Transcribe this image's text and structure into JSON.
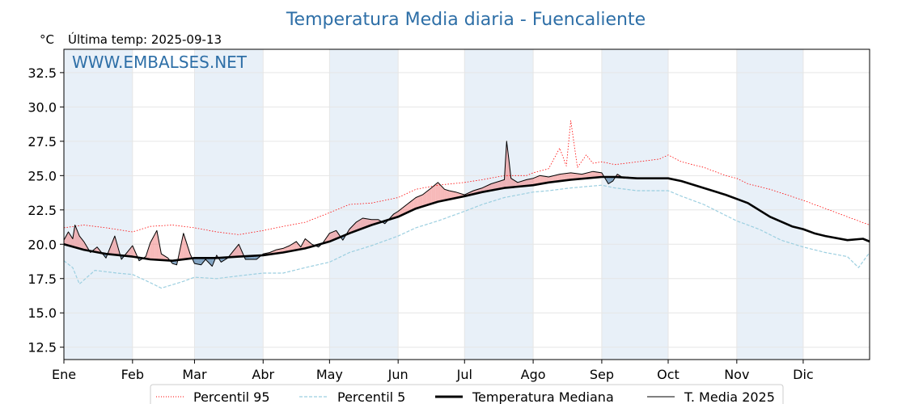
{
  "chart_data": {
    "type": "line",
    "title": "Temperatura Media diaria - Fuencaliente",
    "unit_label": "°C",
    "last_temp_label": "Última temp: 2025-09-13",
    "watermark": "WWW.EMBALSES.NET",
    "xlim": [
      1,
      365
    ],
    "ylim": [
      11.6,
      34.2
    ],
    "y_ticks": [
      "12.5",
      "15.0",
      "17.5",
      "20.0",
      "22.5",
      "25.0",
      "27.5",
      "30.0",
      "32.5"
    ],
    "months": [
      {
        "label": "Ene",
        "day": 1
      },
      {
        "label": "Feb",
        "day": 32
      },
      {
        "label": "Mar",
        "day": 60
      },
      {
        "label": "Abr",
        "day": 91
      },
      {
        "label": "May",
        "day": 121
      },
      {
        "label": "Jun",
        "day": 152
      },
      {
        "label": "Jul",
        "day": 182
      },
      {
        "label": "Ago",
        "day": 213
      },
      {
        "label": "Sep",
        "day": 244
      },
      {
        "label": "Oct",
        "day": 274
      },
      {
        "label": "Nov",
        "day": 305
      },
      {
        "label": "Dic",
        "day": 335
      }
    ],
    "grid": true,
    "legend_position": "bottom",
    "series": [
      {
        "name": "Percentil 95",
        "style": "dotted",
        "color": "#ff0000",
        "points": [
          [
            1,
            21.2
          ],
          [
            10,
            21.4
          ],
          [
            20,
            21.2
          ],
          [
            32,
            20.9
          ],
          [
            40,
            21.3
          ],
          [
            50,
            21.4
          ],
          [
            60,
            21.2
          ],
          [
            70,
            20.9
          ],
          [
            80,
            20.7
          ],
          [
            91,
            21.0
          ],
          [
            100,
            21.3
          ],
          [
            110,
            21.6
          ],
          [
            121,
            22.3
          ],
          [
            130,
            22.9
          ],
          [
            140,
            23.0
          ],
          [
            152,
            23.4
          ],
          [
            160,
            24.0
          ],
          [
            170,
            24.3
          ],
          [
            182,
            24.5
          ],
          [
            190,
            24.7
          ],
          [
            200,
            25.0
          ],
          [
            210,
            25.0
          ],
          [
            213,
            25.2
          ],
          [
            220,
            25.5
          ],
          [
            225,
            27.0
          ],
          [
            228,
            25.7
          ],
          [
            230,
            29.0
          ],
          [
            233,
            25.6
          ],
          [
            237,
            26.5
          ],
          [
            240,
            25.9
          ],
          [
            244,
            26.0
          ],
          [
            250,
            25.8
          ],
          [
            260,
            26.0
          ],
          [
            270,
            26.2
          ],
          [
            274,
            26.5
          ],
          [
            280,
            26.0
          ],
          [
            290,
            25.6
          ],
          [
            300,
            25.0
          ],
          [
            305,
            24.8
          ],
          [
            310,
            24.4
          ],
          [
            320,
            24.0
          ],
          [
            335,
            23.2
          ],
          [
            345,
            22.6
          ],
          [
            355,
            22.0
          ],
          [
            365,
            21.4
          ]
        ]
      },
      {
        "name": "Percentil 5",
        "style": "dashed",
        "color": "#9ccfe0",
        "points": [
          [
            1,
            18.8
          ],
          [
            5,
            18.3
          ],
          [
            8,
            17.1
          ],
          [
            15,
            18.1
          ],
          [
            25,
            17.9
          ],
          [
            32,
            17.8
          ],
          [
            40,
            17.2
          ],
          [
            45,
            16.8
          ],
          [
            55,
            17.3
          ],
          [
            60,
            17.6
          ],
          [
            70,
            17.5
          ],
          [
            80,
            17.7
          ],
          [
            91,
            17.9
          ],
          [
            100,
            17.9
          ],
          [
            110,
            18.3
          ],
          [
            121,
            18.7
          ],
          [
            130,
            19.4
          ],
          [
            140,
            19.9
          ],
          [
            152,
            20.6
          ],
          [
            160,
            21.2
          ],
          [
            170,
            21.7
          ],
          [
            182,
            22.4
          ],
          [
            190,
            22.9
          ],
          [
            200,
            23.4
          ],
          [
            213,
            23.8
          ],
          [
            220,
            23.9
          ],
          [
            230,
            24.1
          ],
          [
            244,
            24.3
          ],
          [
            250,
            24.1
          ],
          [
            260,
            23.9
          ],
          [
            274,
            23.9
          ],
          [
            280,
            23.5
          ],
          [
            290,
            22.9
          ],
          [
            300,
            22.1
          ],
          [
            305,
            21.7
          ],
          [
            315,
            21.1
          ],
          [
            325,
            20.3
          ],
          [
            335,
            19.8
          ],
          [
            345,
            19.4
          ],
          [
            355,
            19.1
          ],
          [
            360,
            18.3
          ],
          [
            365,
            19.4
          ]
        ]
      },
      {
        "name": "Temperatura Mediana",
        "style": "solid-thick",
        "color": "#000000",
        "points": [
          [
            1,
            20.0
          ],
          [
            10,
            19.6
          ],
          [
            20,
            19.3
          ],
          [
            32,
            19.1
          ],
          [
            40,
            18.9
          ],
          [
            50,
            18.8
          ],
          [
            60,
            19.0
          ],
          [
            70,
            19.0
          ],
          [
            80,
            19.1
          ],
          [
            91,
            19.2
          ],
          [
            100,
            19.4
          ],
          [
            110,
            19.7
          ],
          [
            121,
            20.2
          ],
          [
            130,
            20.8
          ],
          [
            140,
            21.4
          ],
          [
            152,
            22.0
          ],
          [
            160,
            22.6
          ],
          [
            170,
            23.1
          ],
          [
            182,
            23.5
          ],
          [
            190,
            23.8
          ],
          [
            200,
            24.1
          ],
          [
            213,
            24.3
          ],
          [
            220,
            24.5
          ],
          [
            230,
            24.7
          ],
          [
            244,
            24.9
          ],
          [
            250,
            24.9
          ],
          [
            260,
            24.8
          ],
          [
            274,
            24.8
          ],
          [
            280,
            24.6
          ],
          [
            290,
            24.1
          ],
          [
            300,
            23.6
          ],
          [
            305,
            23.3
          ],
          [
            310,
            23.0
          ],
          [
            315,
            22.5
          ],
          [
            320,
            22.0
          ],
          [
            330,
            21.3
          ],
          [
            335,
            21.1
          ],
          [
            340,
            20.8
          ],
          [
            345,
            20.6
          ],
          [
            355,
            20.3
          ],
          [
            362,
            20.4
          ],
          [
            365,
            20.2
          ]
        ]
      },
      {
        "name": "T. Media 2025",
        "style": "solid",
        "color": "#000000",
        "points": [
          [
            1,
            20.3
          ],
          [
            3,
            20.9
          ],
          [
            5,
            20.4
          ],
          [
            6,
            21.4
          ],
          [
            8,
            20.6
          ],
          [
            10,
            20.2
          ],
          [
            13,
            19.4
          ],
          [
            16,
            19.8
          ],
          [
            20,
            19.0
          ],
          [
            24,
            20.6
          ],
          [
            27,
            18.9
          ],
          [
            30,
            19.5
          ],
          [
            32,
            19.9
          ],
          [
            35,
            18.8
          ],
          [
            38,
            19.1
          ],
          [
            40,
            20.1
          ],
          [
            43,
            21.0
          ],
          [
            45,
            19.3
          ],
          [
            48,
            19.0
          ],
          [
            50,
            18.6
          ],
          [
            52,
            18.5
          ],
          [
            55,
            20.8
          ],
          [
            58,
            19.3
          ],
          [
            60,
            18.6
          ],
          [
            63,
            18.5
          ],
          [
            65,
            18.9
          ],
          [
            68,
            18.4
          ],
          [
            70,
            19.2
          ],
          [
            72,
            18.7
          ],
          [
            75,
            19.0
          ],
          [
            78,
            19.6
          ],
          [
            80,
            20.0
          ],
          [
            83,
            18.9
          ],
          [
            85,
            18.9
          ],
          [
            88,
            18.9
          ],
          [
            91,
            19.3
          ],
          [
            94,
            19.4
          ],
          [
            97,
            19.6
          ],
          [
            100,
            19.7
          ],
          [
            103,
            19.9
          ],
          [
            106,
            20.2
          ],
          [
            108,
            19.8
          ],
          [
            110,
            20.4
          ],
          [
            113,
            20.0
          ],
          [
            116,
            19.8
          ],
          [
            118,
            20.1
          ],
          [
            121,
            20.8
          ],
          [
            124,
            21.0
          ],
          [
            127,
            20.3
          ],
          [
            130,
            21.1
          ],
          [
            133,
            21.6
          ],
          [
            136,
            21.9
          ],
          [
            140,
            21.8
          ],
          [
            143,
            21.8
          ],
          [
            146,
            21.5
          ],
          [
            150,
            22.2
          ],
          [
            152,
            22.4
          ],
          [
            156,
            22.9
          ],
          [
            160,
            23.4
          ],
          [
            163,
            23.6
          ],
          [
            167,
            24.1
          ],
          [
            170,
            24.5
          ],
          [
            173,
            24.0
          ],
          [
            175,
            23.9
          ],
          [
            178,
            23.8
          ],
          [
            182,
            23.6
          ],
          [
            186,
            23.9
          ],
          [
            190,
            24.1
          ],
          [
            194,
            24.4
          ],
          [
            198,
            24.6
          ],
          [
            200,
            24.7
          ],
          [
            201,
            27.5
          ],
          [
            202,
            26.2
          ],
          [
            203,
            24.8
          ],
          [
            206,
            24.5
          ],
          [
            210,
            24.7
          ],
          [
            213,
            24.8
          ],
          [
            216,
            25.0
          ],
          [
            220,
            24.9
          ],
          [
            225,
            25.1
          ],
          [
            230,
            25.2
          ],
          [
            235,
            25.1
          ],
          [
            240,
            25.3
          ],
          [
            244,
            25.2
          ],
          [
            247,
            24.4
          ],
          [
            249,
            24.6
          ],
          [
            251,
            25.1
          ],
          [
            254,
            24.8
          ],
          [
            256,
            24.9
          ]
        ]
      }
    ]
  },
  "legend": {
    "p95": "Percentil 95",
    "p5": "Percentil 5",
    "mediana": "Temperatura Mediana",
    "media2025": "T. Media 2025"
  },
  "colors": {
    "title": "#2e6fa7",
    "band": "#e8f0f8",
    "above_fill": "#f08080",
    "below_fill": "#6f95b8"
  }
}
